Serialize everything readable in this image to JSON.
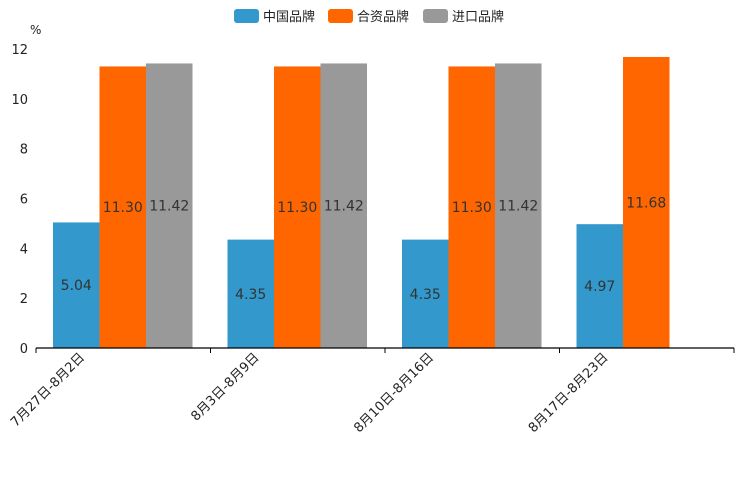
{
  "chart_data": {
    "type": "bar",
    "categories": [
      "7月27日-8月2日",
      "8月3日-8月9日",
      "8月10日-8月16日",
      "8月17日-8月23日"
    ],
    "series": [
      {
        "name": "中国品牌",
        "color": "#3399cc",
        "values": [
          5.04,
          4.35,
          4.35,
          4.97
        ]
      },
      {
        "name": "合资品牌",
        "color": "#ff6600",
        "values": [
          11.3,
          11.3,
          11.3,
          11.68
        ]
      },
      {
        "name": "进口品牌",
        "color": "#999999",
        "values": [
          11.42,
          11.42,
          11.42,
          null
        ]
      }
    ],
    "data_labels": [
      [
        "5.04",
        "4.35",
        "4.35",
        "4.97"
      ],
      [
        "11.30",
        "11.30",
        "11.30",
        "11.68"
      ],
      [
        "11.42",
        "11.42",
        "11.42",
        ""
      ]
    ],
    "y_unit": "%",
    "ylim": [
      0,
      12
    ],
    "yticks": [
      "0",
      "2",
      "4",
      "6",
      "8",
      "10",
      "12"
    ],
    "legend_position": "top-center",
    "grid": false,
    "title": "",
    "xlabel": "",
    "ylabel": ""
  }
}
